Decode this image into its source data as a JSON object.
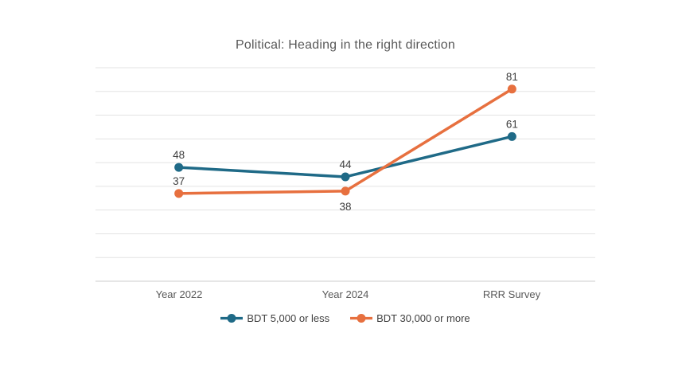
{
  "chart_data": {
    "type": "line",
    "title": "Political: Heading in the right direction",
    "categories": [
      "Year 2022",
      "Year 2024",
      "RRR Survey"
    ],
    "series": [
      {
        "name": "BDT 5,000 or less",
        "values": [
          48,
          44,
          61
        ],
        "color": "#1F6A87",
        "label_positions": [
          "above",
          "above",
          "above"
        ]
      },
      {
        "name": "BDT 30,000 or more",
        "values": [
          37,
          38,
          81
        ],
        "color": "#E7703F",
        "label_positions": [
          "above",
          "below",
          "above"
        ]
      }
    ],
    "ylim": [
      0,
      90
    ],
    "grid_step": 10,
    "grid": true,
    "data_labels": true,
    "legend_position": "bottom",
    "xlabel": "",
    "ylabel": ""
  },
  "colors": {
    "background": "#ffffff",
    "gridline": "#e3e3e3",
    "axis_line": "#d6d6d6",
    "title_text": "#595959",
    "axis_text": "#595959",
    "data_label_text": "#404040",
    "legend_text": "#404040"
  }
}
